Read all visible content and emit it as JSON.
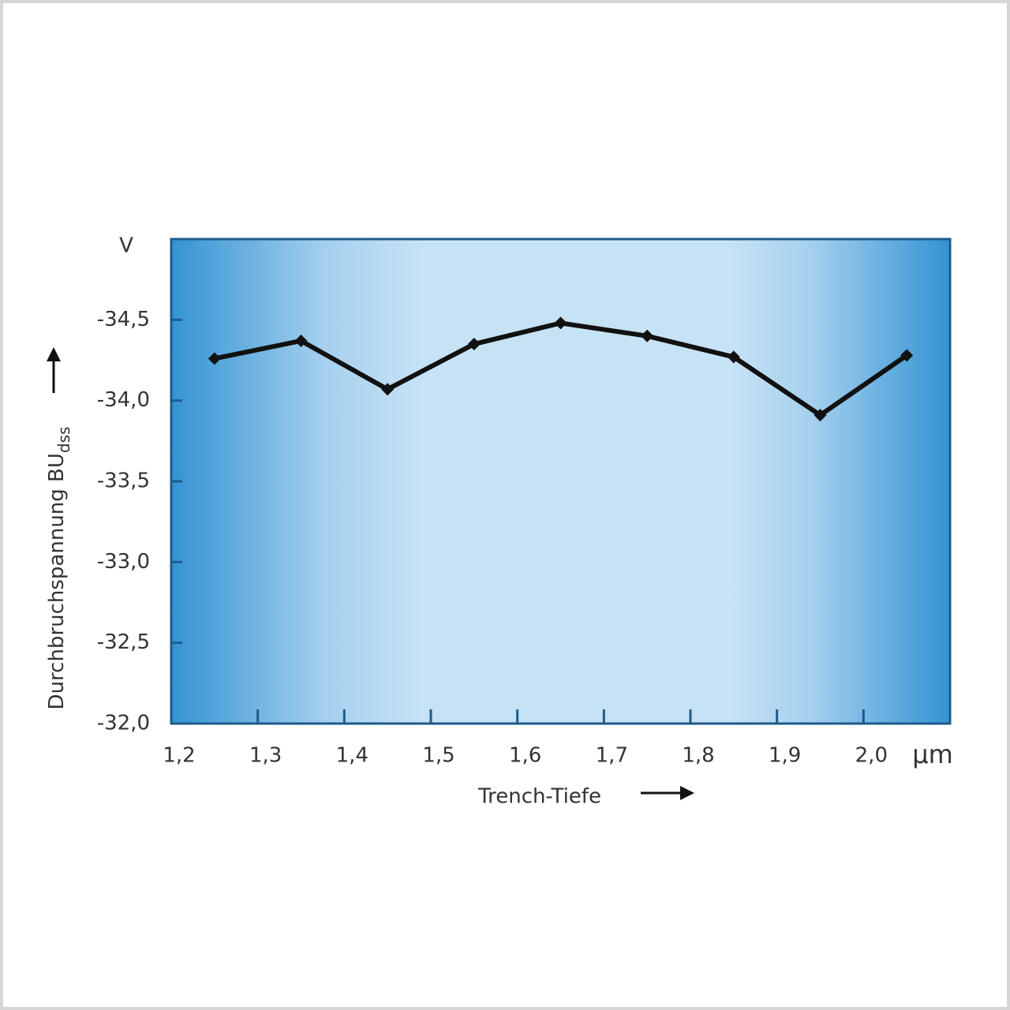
{
  "chart_data": {
    "type": "line",
    "y_label": "Durchbruchspannung BU",
    "y_label_subscript": "dss",
    "y_unit": "V",
    "x_label": "Trench-Tiefe",
    "x_unit": "µm",
    "x": [
      1.25,
      1.35,
      1.45,
      1.55,
      1.65,
      1.75,
      1.85,
      1.95,
      2.05
    ],
    "values": [
      -34.26,
      -34.37,
      -34.07,
      -34.35,
      -34.48,
      -34.4,
      -34.27,
      -33.91,
      -34.28
    ],
    "color": "#111111",
    "xlim": [
      1.2,
      2.1
    ],
    "xticks": [
      {
        "value": 1.2,
        "label": "1,2"
      },
      {
        "value": 1.3,
        "label": "1,3"
      },
      {
        "value": 1.4,
        "label": "1,4"
      },
      {
        "value": 1.5,
        "label": "1,5"
      },
      {
        "value": 1.6,
        "label": "1,6"
      },
      {
        "value": 1.7,
        "label": "1,7"
      },
      {
        "value": 1.8,
        "label": "1,8"
      },
      {
        "value": 1.9,
        "label": "1,9"
      },
      {
        "value": 2.0,
        "label": "2,0"
      }
    ],
    "ylim": [
      -32,
      -35
    ],
    "yticks": [
      {
        "value": -32,
        "label": "-32,0"
      },
      {
        "value": -32.5,
        "label": "-32,5"
      },
      {
        "value": -33,
        "label": "-33,0"
      },
      {
        "value": -33.5,
        "label": "-33,5"
      },
      {
        "value": -34,
        "label": "-34,0"
      },
      {
        "value": -34.5,
        "label": "-34,5"
      }
    ],
    "grid": false
  }
}
